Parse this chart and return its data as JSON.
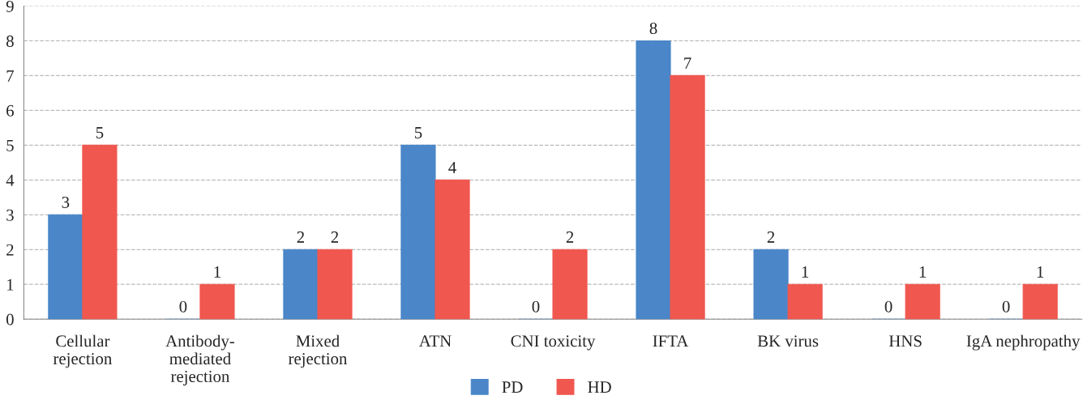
{
  "chart_data": {
    "type": "bar",
    "categories": [
      "Cellular\nrejection",
      "Antibody-\nmediated\nrejection",
      "Mixed\nrejection",
      "ATN",
      "CNI toxicity",
      "IFTA",
      "BK virus",
      "HNS",
      "IgA nephropathy"
    ],
    "series": [
      {
        "name": "PD",
        "color": "#4a86c8",
        "values": [
          3,
          0,
          2,
          5,
          0,
          8,
          2,
          0,
          0
        ]
      },
      {
        "name": "HD",
        "color": "#f0574f",
        "values": [
          5,
          1,
          2,
          4,
          2,
          7,
          1,
          1,
          1
        ]
      }
    ],
    "ylim": [
      0,
      9
    ],
    "yticks": [
      0,
      1,
      2,
      3,
      4,
      5,
      6,
      7,
      8,
      9
    ],
    "grid": "y",
    "legend": "bottom",
    "data_labels": true
  }
}
